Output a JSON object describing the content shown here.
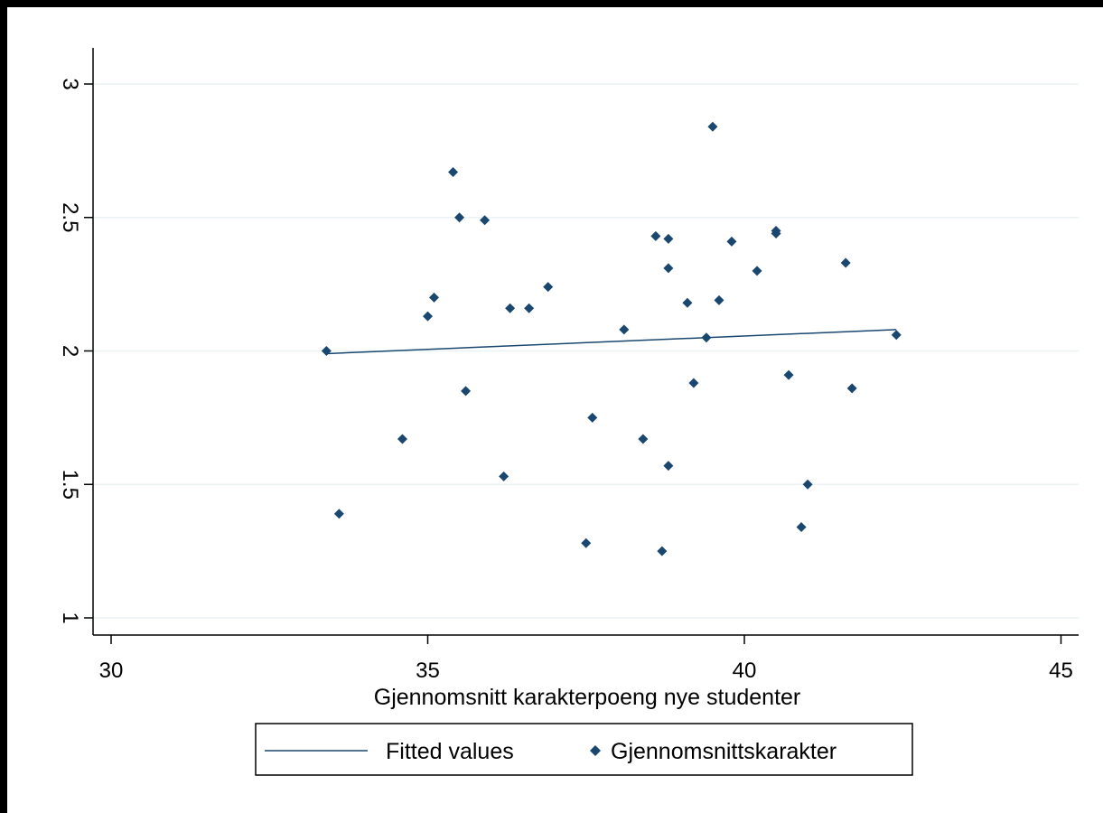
{
  "chart_data": {
    "type": "scatter",
    "title": "",
    "xlabel": "Gjennomsnitt karakterpoeng nye studenter",
    "ylabel": "",
    "xlim": [
      30,
      45
    ],
    "ylim": [
      1,
      3
    ],
    "xticks": [
      "30",
      "35",
      "40",
      "45"
    ],
    "yticks": [
      "1",
      "1.5",
      "2",
      "2.5",
      "3"
    ],
    "grid": true,
    "legend_position": "bottom",
    "series": [
      {
        "name": "Fitted values",
        "type": "line",
        "color": "#1a476f",
        "points": [
          [
            33.4,
            1.99
          ],
          [
            42.4,
            2.08
          ]
        ]
      },
      {
        "name": "Gjennomsnittskarakter",
        "type": "scatter",
        "marker": "diamond",
        "color": "#1a476f",
        "points": [
          [
            33.4,
            2.0
          ],
          [
            33.6,
            1.39
          ],
          [
            34.6,
            1.67
          ],
          [
            35.0,
            2.13
          ],
          [
            35.1,
            2.2
          ],
          [
            35.4,
            2.67
          ],
          [
            35.5,
            2.5
          ],
          [
            35.6,
            1.85
          ],
          [
            35.9,
            2.49
          ],
          [
            36.2,
            1.53
          ],
          [
            36.3,
            2.16
          ],
          [
            36.6,
            2.16
          ],
          [
            36.9,
            2.24
          ],
          [
            37.5,
            1.28
          ],
          [
            37.6,
            1.75
          ],
          [
            38.1,
            2.08
          ],
          [
            38.4,
            1.67
          ],
          [
            38.6,
            2.43
          ],
          [
            38.7,
            1.25
          ],
          [
            38.8,
            2.42
          ],
          [
            38.8,
            2.31
          ],
          [
            38.8,
            1.57
          ],
          [
            39.1,
            2.18
          ],
          [
            39.2,
            1.88
          ],
          [
            39.4,
            2.05
          ],
          [
            39.5,
            2.84
          ],
          [
            39.6,
            2.19
          ],
          [
            39.8,
            2.41
          ],
          [
            40.2,
            2.3
          ],
          [
            40.5,
            2.44
          ],
          [
            40.5,
            2.45
          ],
          [
            40.7,
            1.91
          ],
          [
            40.9,
            1.34
          ],
          [
            41.0,
            1.5
          ],
          [
            41.6,
            2.33
          ],
          [
            41.7,
            1.86
          ],
          [
            42.4,
            2.06
          ]
        ]
      }
    ]
  }
}
